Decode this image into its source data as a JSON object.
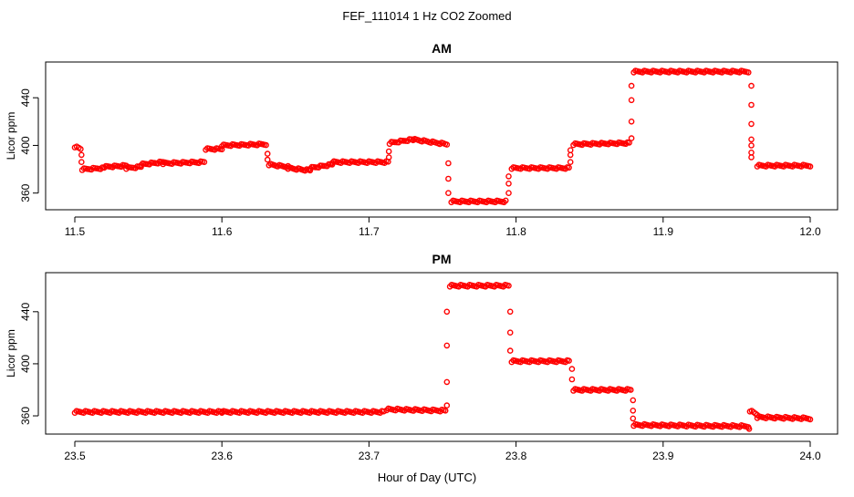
{
  "figure_title": "FEF_111014  1 Hz CO2 Zoomed",
  "xlabel": "Hour of Day (UTC)",
  "colors": {
    "points": "#ff0000",
    "axes": "#000000",
    "background": "#ffffff"
  },
  "chart_data": [
    {
      "type": "scatter",
      "title": "AM",
      "ylabel": "Licor ppm",
      "xlim": [
        11.5,
        12.0
      ],
      "ylim": [
        346,
        470
      ],
      "x_ticks": [
        "11.5",
        "11.6",
        "11.7",
        "11.8",
        "11.9",
        "12.0"
      ],
      "y_ticks": [
        "360",
        "400",
        "440"
      ],
      "grid": false,
      "series": [
        {
          "segments": [
            {
              "x0": 11.5,
              "x1": 11.504,
              "y0": 399,
              "y1": 397
            },
            {
              "x0": 11.505,
              "x1": 11.52,
              "y0": 380,
              "y1": 381
            },
            {
              "x0": 11.52,
              "x1": 11.535,
              "y0": 382,
              "y1": 383
            },
            {
              "x0": 11.535,
              "x1": 11.545,
              "y0": 381,
              "y1": 382
            },
            {
              "x0": 11.545,
              "x1": 11.56,
              "y0": 384,
              "y1": 386
            },
            {
              "x0": 11.56,
              "x1": 11.588,
              "y0": 385,
              "y1": 386
            },
            {
              "x0": 11.589,
              "x1": 11.6,
              "y0": 397,
              "y1": 397
            },
            {
              "x0": 11.6,
              "x1": 11.63,
              "y0": 400,
              "y1": 401
            },
            {
              "x0": 11.632,
              "x1": 11.645,
              "y0": 384,
              "y1": 382
            },
            {
              "x0": 11.645,
              "x1": 11.66,
              "y0": 381,
              "y1": 379
            },
            {
              "x0": 11.66,
              "x1": 11.675,
              "y0": 381,
              "y1": 384
            },
            {
              "x0": 11.675,
              "x1": 11.713,
              "y0": 386,
              "y1": 386
            },
            {
              "x0": 11.714,
              "x1": 11.73,
              "y0": 402,
              "y1": 405
            },
            {
              "x0": 11.73,
              "x1": 11.753,
              "y0": 405,
              "y1": 401
            },
            {
              "x0": 11.756,
              "x1": 11.793,
              "y0": 353,
              "y1": 353
            },
            {
              "x0": 11.797,
              "x1": 11.836,
              "y0": 381,
              "y1": 381
            },
            {
              "x0": 11.839,
              "x1": 11.877,
              "y0": 401,
              "y1": 402
            },
            {
              "x0": 11.88,
              "x1": 11.958,
              "y0": 462,
              "y1": 462
            },
            {
              "x0": 11.964,
              "x1": 12.0,
              "y0": 383,
              "y1": 383
            }
          ],
          "transitions": [
            {
              "x": 11.5045,
              "ys": [
                392,
                386
              ]
            },
            {
              "x": 11.631,
              "ys": [
                393,
                388
              ]
            },
            {
              "x": 11.7135,
              "ys": [
                395,
                390
              ]
            },
            {
              "x": 11.754,
              "ys": [
                385,
                372,
                360
              ]
            },
            {
              "x": 11.795,
              "ys": [
                360,
                368,
                374
              ]
            },
            {
              "x": 11.837,
              "ys": [
                386,
                392,
                396
              ]
            },
            {
              "x": 11.8785,
              "ys": [
                406,
                420,
                438,
                450
              ]
            },
            {
              "x": 11.96,
              "ys": [
                450,
                434,
                418,
                405,
                400,
                394,
                390
              ]
            }
          ]
        }
      ]
    },
    {
      "type": "scatter",
      "title": "PM",
      "ylabel": "Licor ppm",
      "xlim": [
        23.5,
        24.0
      ],
      "ylim": [
        346,
        470
      ],
      "x_ticks": [
        "23.5",
        "23.6",
        "23.7",
        "23.8",
        "23.9",
        "24.0"
      ],
      "y_ticks": [
        "360",
        "400",
        "440"
      ],
      "grid": false,
      "series": [
        {
          "segments": [
            {
              "x0": 23.5,
              "x1": 23.6,
              "y0": 363,
              "y1": 363
            },
            {
              "x0": 23.6,
              "x1": 23.71,
              "y0": 363,
              "y1": 363
            },
            {
              "x0": 23.712,
              "x1": 23.752,
              "y0": 365,
              "y1": 364
            },
            {
              "x0": 23.755,
              "x1": 23.795,
              "y0": 460,
              "y1": 460
            },
            {
              "x0": 23.797,
              "x1": 23.836,
              "y0": 402,
              "y1": 402
            },
            {
              "x0": 23.839,
              "x1": 23.878,
              "y0": 380,
              "y1": 380
            },
            {
              "x0": 23.88,
              "x1": 23.958,
              "y0": 353,
              "y1": 352
            },
            {
              "x0": 23.959,
              "x1": 23.964,
              "y0": 364,
              "y1": 361
            },
            {
              "x0": 23.964,
              "x1": 24.0,
              "y0": 359,
              "y1": 358
            }
          ],
          "transitions": [
            {
              "x": 23.753,
              "ys": [
                368,
                386,
                414,
                440
              ]
            },
            {
              "x": 23.796,
              "ys": [
                440,
                424,
                410
              ]
            },
            {
              "x": 23.838,
              "ys": [
                396,
                388
              ]
            },
            {
              "x": 23.8795,
              "ys": [
                372,
                364,
                358
              ]
            },
            {
              "x": 23.9585,
              "ys": [
                350
              ]
            }
          ]
        }
      ]
    }
  ]
}
